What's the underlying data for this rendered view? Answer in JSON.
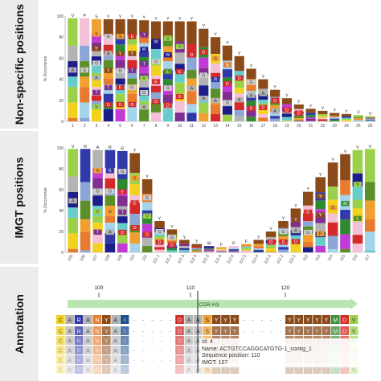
{
  "panels": {
    "nonspecific_label": "Non-specific positions",
    "imgt_label": "IMGT positions",
    "annotation_label": "Annotation"
  },
  "colors": {
    "label_bg": "#ececec",
    "region_bar": "#b9e6b0",
    "cursor": "#222222"
  },
  "aa_colors": {
    "A": "#b3b3b3",
    "R": "#2f39a8",
    "N": "#e77b2f",
    "D": "#d42a2a",
    "C": "#f2d21e",
    "Q": "#2e8a2e",
    "E": "#d42a2a",
    "G": "#cfcfcf",
    "H": "#8ca6d6",
    "I": "#1f4f8f",
    "L": "#5a8f2a",
    "K": "#2f39a8",
    "M": "#3a8f3a",
    "F": "#e79a2f",
    "P": "#f3c0d8",
    "S": "#f0a030",
    "T": "#7f2f8f",
    "W": "#1d1d8a",
    "Y": "#8b4a1a",
    "V": "#9bd14a",
    "*": "#333333",
    "-": "#f5f5f5",
    "U": "#a4d4ea",
    "O": "#c23ad4",
    "X": "#66cccc"
  },
  "chart_data": [
    {
      "type": "bar",
      "ylabel": "% Occurrence",
      "ylim": [
        0,
        100
      ],
      "y_ticks": [
        "100",
        "80",
        "60",
        "40",
        "20",
        "0"
      ],
      "categories": [
        "1",
        "2",
        "3",
        "4",
        "5",
        "6",
        "7",
        "8",
        "9",
        "10",
        "11",
        "12",
        "13",
        "14",
        "15",
        "16",
        "17",
        "18",
        "19",
        "20",
        "21",
        "22",
        "23",
        "24",
        "25",
        "26"
      ],
      "values": [
        98,
        98,
        97,
        97,
        97,
        97,
        96,
        95,
        95,
        95,
        95,
        88,
        80,
        72,
        62,
        50,
        40,
        30,
        22,
        16,
        12,
        10,
        8,
        7,
        6,
        5
      ],
      "top_residues": [
        "V",
        "P",
        "S",
        "Y",
        "Y",
        "Y",
        "Y",
        "Y",
        "Y",
        "Y",
        "Y",
        "Y",
        "Y",
        "Y",
        "Y",
        "Y",
        "Y",
        "Y",
        "Y",
        "Y",
        "Y",
        "Y",
        "Y",
        "Y",
        "V",
        "V"
      ],
      "inner_labels": [
        [
          "A"
        ],
        [
          "G"
        ],
        [
          "S",
          "Y",
          "G",
          "A",
          "T",
          "V"
        ],
        [
          "G",
          "A",
          "Y",
          "T",
          "D"
        ],
        [
          "S",
          "Y",
          "G",
          "E",
          "D"
        ],
        [
          "E",
          "Y",
          "T",
          "G",
          "D"
        ],
        [
          "T",
          "W",
          "T",
          "V",
          "G",
          "A"
        ],
        [
          "W",
          "G",
          "E",
          "D"
        ],
        [
          "V",
          "W",
          "L",
          "G",
          "D"
        ],
        [
          "V",
          "E",
          "D"
        ],
        [
          "D",
          "A"
        ],
        [
          "D",
          "G",
          "A"
        ],
        [
          "S",
          "R",
          "A"
        ],
        [
          "N",
          "D",
          "G"
        ],
        [
          "D",
          "A"
        ],
        [
          "G",
          "A",
          "D"
        ],
        [
          "A",
          "D"
        ],
        [
          "D",
          "A"
        ],
        [
          "D"
        ],
        [
          "D"
        ],
        [],
        [],
        [],
        [],
        [],
        []
      ]
    },
    {
      "type": "bar",
      "ylabel": "% Occurrence",
      "ylim": [
        0,
        100
      ],
      "y_ticks": [
        "100",
        "80",
        "60",
        "40",
        "20",
        "0"
      ],
      "categories": [
        "105",
        "106",
        "107",
        "108",
        "109",
        "110",
        "111",
        "111.1",
        "111.2",
        "111.3",
        "111.4",
        "111.5",
        "111.6",
        "112.6",
        "112.5",
        "112.4",
        "112.3",
        "112.2",
        "112.1",
        "112",
        "113",
        "114",
        "115",
        "116",
        "117"
      ],
      "values": [
        99,
        99,
        98,
        98,
        97,
        95,
        70,
        30,
        22,
        12,
        8,
        6,
        5,
        6,
        8,
        12,
        20,
        30,
        42,
        58,
        72,
        86,
        94,
        98,
        99
      ],
      "top_residues": [
        "V",
        "R",
        "A",
        "R",
        "R",
        "Y",
        "Y",
        "Y",
        "Y",
        "Y",
        "Y",
        "W",
        "F",
        "P",
        "F",
        "Y",
        "Y",
        "Y",
        "Y",
        "Y",
        "Y",
        "Y",
        "Y",
        "V",
        "V"
      ],
      "inner_labels": [
        [
          "A"
        ],
        [],
        [
          "S",
          "G",
          "V",
          "T"
        ],
        [
          "K",
          "G",
          "S",
          "A"
        ],
        [
          "G",
          "E",
          "T",
          "D"
        ],
        [
          "S",
          "E",
          "D"
        ],
        [
          "G",
          "V",
          "D"
        ],
        [
          "G",
          "D"
        ],
        [
          "G",
          "D"
        ],
        [],
        [],
        [],
        [],
        [],
        [],
        [],
        [
          "D"
        ],
        [
          "G",
          "D"
        ],
        [
          "Y",
          "A",
          "D"
        ],
        [
          "D",
          "G"
        ],
        [
          "Y",
          "Y",
          "F"
        ],
        [
          "S"
        ],
        [
          "M"
        ],
        [
          "V",
          "L"
        ],
        []
      ]
    }
  ],
  "annotation": {
    "ruler_ticks": [
      "100",
      "110",
      "120"
    ],
    "region_label": "CDR-H3",
    "sequence": [
      "C",
      "A",
      "R",
      "A",
      "N",
      "Y",
      "A",
      "I",
      "-",
      "-",
      "-",
      "-",
      "-",
      "D",
      "A",
      "A",
      "S",
      "Y",
      "Y",
      "Y",
      "-",
      "-",
      "-",
      "-",
      "-",
      "Y",
      "Y",
      "Y",
      "Y",
      "Y",
      "M",
      "D",
      "V"
    ],
    "tooltip": [
      "Id: 4",
      "Name: ACTGTCCAGGCATGTG-1_contig_1",
      "Sequence position: 110",
      "IMGT: 107"
    ]
  }
}
